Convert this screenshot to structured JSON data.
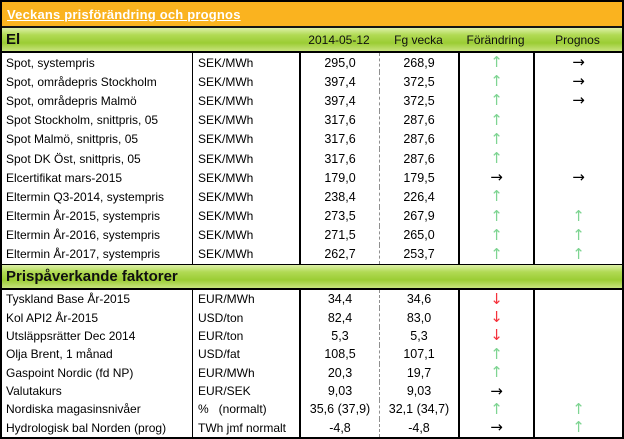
{
  "title": "Veckans prisförändring och prognos",
  "columns": {
    "date": "2014-05-12",
    "previous": "Fg vecka",
    "change": "Förändring",
    "forecast": "Prognos"
  },
  "arrow_glyphs": {
    "up": "↑",
    "down": "↓",
    "right": "→"
  },
  "arrow_colors": {
    "up": "#7ed492",
    "down": "#f5323c",
    "right": "#000000"
  },
  "palette": {
    "header_orange": "#fab31f",
    "section_green": "#9bcd34",
    "title_text": "#ffffff",
    "border": "#000000"
  },
  "sections": [
    {
      "name": "El",
      "rows": [
        {
          "label": "Spot, systempris",
          "unit": "SEK/MWh",
          "current": "295,0",
          "previous": "268,9",
          "change": "up",
          "forecast": "right"
        },
        {
          "label": "Spot, områdepris Stockholm",
          "unit": "SEK/MWh",
          "current": "397,4",
          "previous": "372,5",
          "change": "up",
          "forecast": "right"
        },
        {
          "label": "Spot, områdepris Malmö",
          "unit": "SEK/MWh",
          "current": "397,4",
          "previous": "372,5",
          "change": "up",
          "forecast": "right"
        },
        {
          "label": "Spot Stockholm, snittpris,  05",
          "unit": "SEK/MWh",
          "current": "317,6",
          "previous": "287,6",
          "change": "up",
          "forecast": null
        },
        {
          "label": "Spot Malmö, snittpris,  05",
          "unit": "SEK/MWh",
          "current": "317,6",
          "previous": "287,6",
          "change": "up",
          "forecast": null
        },
        {
          "label": "Spot DK Öst, snittpris,  05",
          "unit": "SEK/MWh",
          "current": "317,6",
          "previous": "287,6",
          "change": "up",
          "forecast": null
        },
        {
          "label": "Elcertifikat mars-2015",
          "unit": "SEK/MWh",
          "current": "179,0",
          "previous": "179,5",
          "change": "right",
          "forecast": "right"
        },
        {
          "label": "Eltermin Q3-2014, systempris",
          "unit": "SEK/MWh",
          "current": "238,4",
          "previous": "226,4",
          "change": "up",
          "forecast": null
        },
        {
          "label": "Eltermin År-2015, systempris",
          "unit": "SEK/MWh",
          "current": "273,5",
          "previous": "267,9",
          "change": "up",
          "forecast": "up"
        },
        {
          "label": "Eltermin År-2016, systempris",
          "unit": "SEK/MWh",
          "current": "271,5",
          "previous": "265,0",
          "change": "up",
          "forecast": "up"
        },
        {
          "label": "Eltermin År-2017, systempris",
          "unit": "SEK/MWh",
          "current": "262,7",
          "previous": "253,7",
          "change": "up",
          "forecast": "up"
        }
      ]
    },
    {
      "name": "Prispåverkande faktorer",
      "rows": [
        {
          "label": "Tyskland Base År-2015",
          "unit": "EUR/MWh",
          "current": "34,4",
          "previous": "34,6",
          "change": "down",
          "forecast": null
        },
        {
          "label": "Kol API2 År-2015",
          "unit": "USD/ton",
          "current": "82,4",
          "previous": "83,0",
          "change": "down",
          "forecast": null
        },
        {
          "label": "Utsläppsrätter Dec 2014",
          "unit": "EUR/ton",
          "current": "5,3",
          "previous": "5,3",
          "change": "down",
          "forecast": null
        },
        {
          "label": "Olja Brent, 1 månad",
          "unit": "USD/fat",
          "current": "108,5",
          "previous": "107,1",
          "change": "up",
          "forecast": null
        },
        {
          "label": "Gaspoint Nordic (fd NP)",
          "unit": "EUR/MWh",
          "current": "20,3",
          "previous": "19,7",
          "change": "up",
          "forecast": null
        },
        {
          "label": "Valutakurs",
          "unit": "EUR/SEK",
          "current": "9,03",
          "previous": "9,03",
          "change": "right",
          "forecast": null
        },
        {
          "label": "Nordiska magasinsnivåer",
          "unit": "%   (normalt)",
          "current": "35,6 (37,9)",
          "previous": "32,1 (34,7)",
          "change": "up",
          "forecast": "up"
        },
        {
          "label": "Hydrologisk bal Norden (prog)",
          "unit": "TWh jmf normalt",
          "current": "-4,8",
          "previous": "-4,8",
          "change": "right",
          "forecast": "up"
        }
      ]
    }
  ]
}
